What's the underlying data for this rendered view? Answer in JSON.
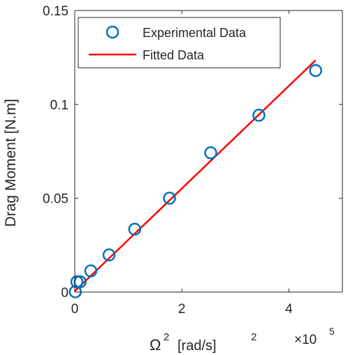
{
  "chart_data": {
    "type": "scatter",
    "xlabel_base": "Ω",
    "xlabel_sup": "2",
    "xlabel_rest": "[rad/s]",
    "xlabel_sup2": "2",
    "ylabel": "Drag Moment [N.m]",
    "x_exponent_base": "×10",
    "x_exponent_power": "5",
    "xlim": [
      0,
      500000
    ],
    "ylim": [
      0,
      0.15
    ],
    "x_ticks": [
      0,
      200000,
      400000
    ],
    "x_tick_labels": [
      "0",
      "2",
      "4"
    ],
    "y_ticks": [
      0,
      0.05,
      0.1,
      0.15
    ],
    "y_tick_labels": [
      "0",
      "0.05",
      "0.1",
      "0.15"
    ],
    "grid": false,
    "legend_position": "top-right",
    "series": [
      {
        "name": "Experimental Data",
        "kind": "markers",
        "color": "#0072BD",
        "x": [
          4000,
          1000,
          10000,
          30000,
          64000,
          112000,
          177000,
          254000,
          344000,
          450000
        ],
        "y": [
          0.0055,
          0.0002,
          0.0055,
          0.0113,
          0.0198,
          0.0335,
          0.05,
          0.0742,
          0.0942,
          0.118
        ]
      },
      {
        "name": "Fitted Data",
        "kind": "line",
        "color": "#FF0000",
        "x": [
          0,
          450000
        ],
        "y": [
          0.0005,
          0.1235
        ]
      }
    ]
  }
}
